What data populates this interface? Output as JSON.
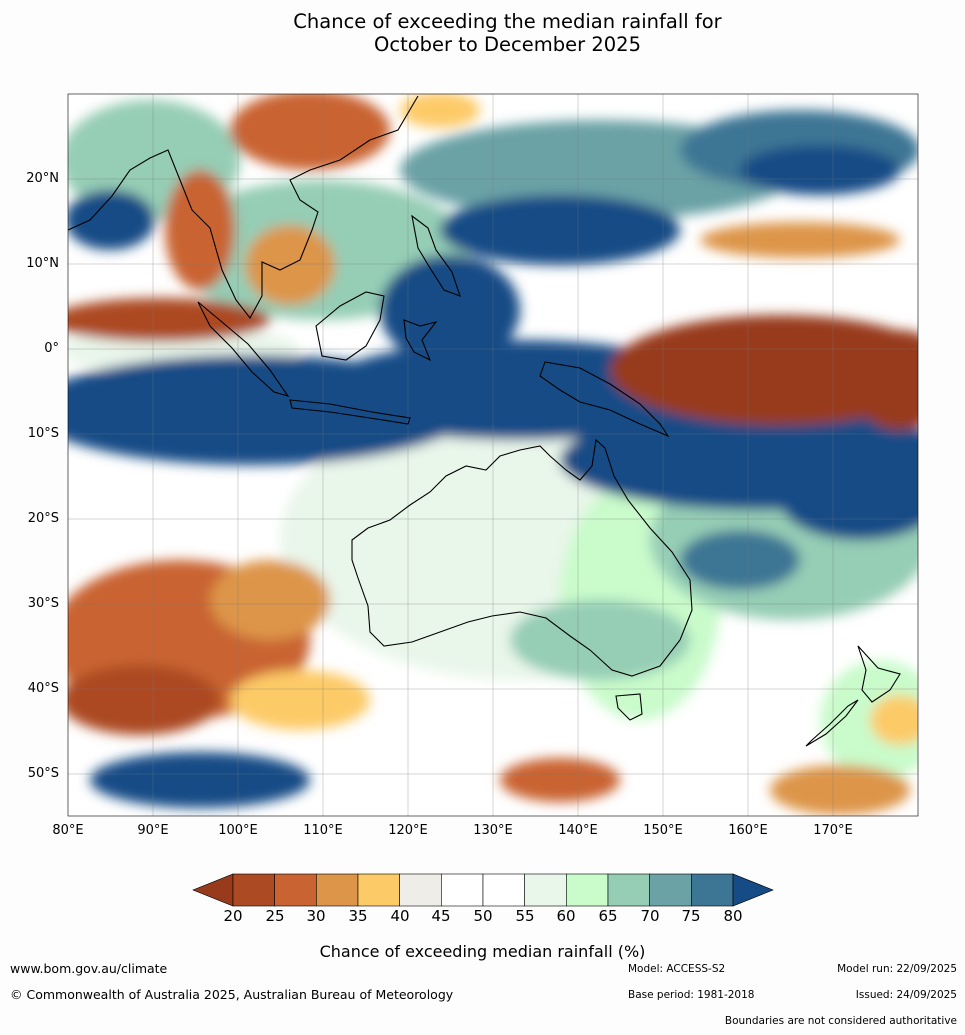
{
  "title": {
    "line1": "Chance of exceeding the median rainfall for",
    "line2": "October to December 2025"
  },
  "axes": {
    "lon_labels": [
      "80°E",
      "90°E",
      "100°E",
      "110°E",
      "120°E",
      "130°E",
      "140°E",
      "150°E",
      "160°E",
      "170°E"
    ],
    "lat_labels": [
      "20°N",
      "10°N",
      "0°",
      "10°S",
      "20°S",
      "30°S",
      "40°S",
      "50°S"
    ]
  },
  "colorbar": {
    "ticks": [
      "20",
      "25",
      "30",
      "35",
      "40",
      "45",
      "50",
      "55",
      "60",
      "65",
      "70",
      "75",
      "80"
    ],
    "colors": [
      "#983a1c",
      "#ac4a23",
      "#c96331",
      "#dd9549",
      "#fdca68",
      "#efede8",
      "#ffffff",
      "#ffffff",
      "#e9f6ea",
      "#c9fbcb",
      "#95cdb5",
      "#6aa2a6",
      "#3d7694",
      "#154c86"
    ],
    "label": "Chance of exceeding median rainfall (%)"
  },
  "footer": {
    "url": "www.bom.gov.au/climate",
    "copyright": "© Commonwealth of Australia 2025, Australian Bureau of Meteorology",
    "model": "Model: ACCESS-S2",
    "base_period": "Base period: 1981-2018",
    "model_run": "Model run: 22/09/2025",
    "issued": "Issued: 24/09/2025",
    "disclaimer": "Boundaries are not considered authoritative"
  }
}
